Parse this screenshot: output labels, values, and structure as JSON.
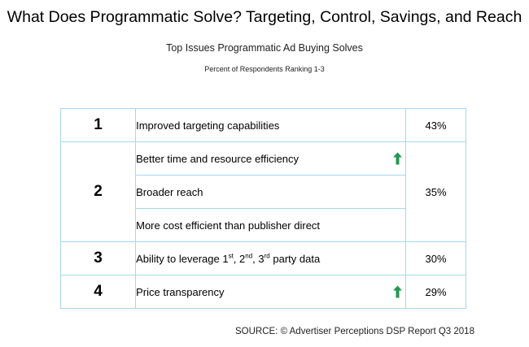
{
  "title": "What Does Programmatic Solve? Targeting, Control, Savings, and Reach",
  "chart_data": {
    "type": "table",
    "title": "Top Issues Programmatic Ad Buying Solves",
    "subtitle": "Percent of Respondents Ranking 1-3",
    "rows": [
      {
        "rank": "1",
        "percent": "43%",
        "items": [
          {
            "label": "Improved targeting capabilities",
            "trend": ""
          }
        ]
      },
      {
        "rank": "2",
        "percent": "35%",
        "items": [
          {
            "label": "Better time and resource efficiency",
            "trend": "up"
          },
          {
            "label": "Broader reach",
            "trend": ""
          },
          {
            "label": "More cost efficient than publisher direct",
            "trend": ""
          }
        ]
      },
      {
        "rank": "3",
        "percent": "30%",
        "items": [
          {
            "label_parts": [
              "Ability to leverage 1",
              "st",
              ", 2",
              "nd",
              ", 3",
              "rd",
              " party data"
            ],
            "trend": ""
          }
        ]
      },
      {
        "rank": "4",
        "percent": "29%",
        "items": [
          {
            "label": "Price transparency",
            "trend": "up"
          }
        ]
      }
    ]
  },
  "source": "SOURCE: © Advertiser Perceptions DSP Report Q3 2018",
  "colors": {
    "border": "#a5d8ea",
    "arrow": "#1f9a4f"
  },
  "icons": {
    "trend_up": "up-arrow-icon"
  }
}
